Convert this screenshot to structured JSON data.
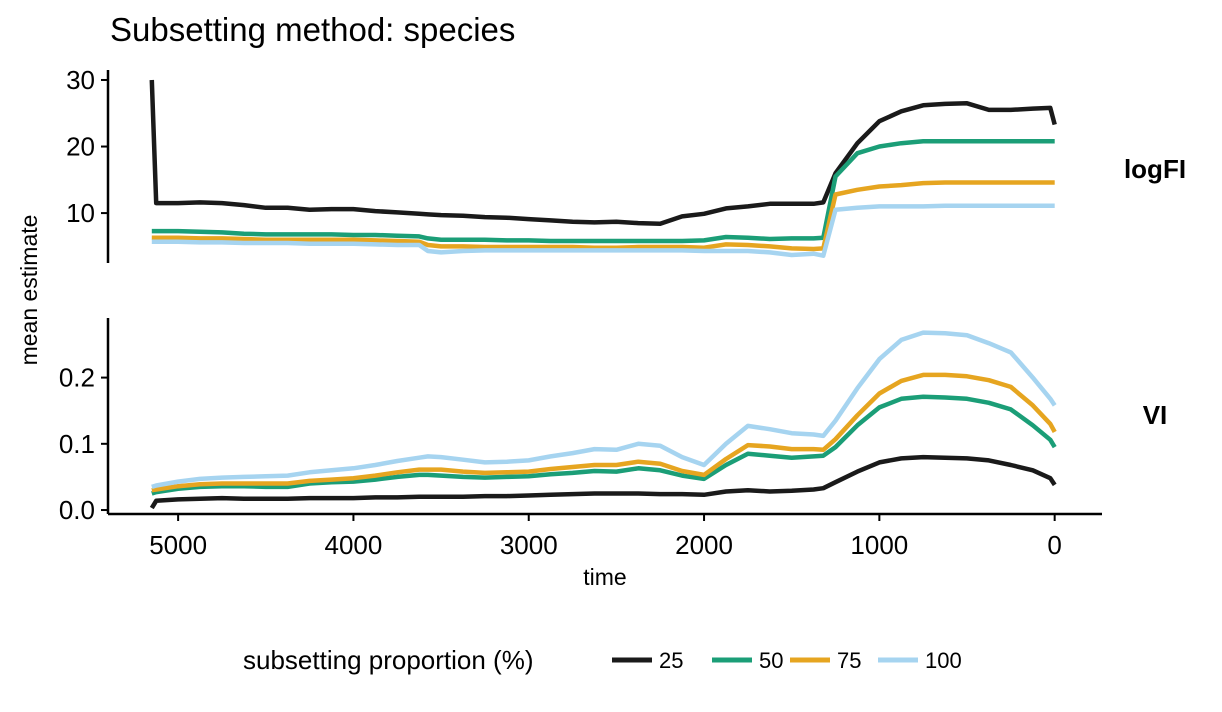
{
  "chart_data": {
    "type": "line",
    "title": "Subsetting method: species",
    "xlabel": "time",
    "ylabel": "mean estimate",
    "x_reversed": true,
    "xlim": [
      5400,
      -270
    ],
    "x_ticks": [
      5000,
      4000,
      3000,
      2000,
      1000,
      0
    ],
    "x": [
      5150,
      5125,
      5000,
      4875,
      4750,
      4625,
      4500,
      4375,
      4250,
      4125,
      4000,
      3875,
      3750,
      3625,
      3575,
      3500,
      3375,
      3250,
      3125,
      3000,
      2875,
      2750,
      2625,
      2500,
      2375,
      2250,
      2125,
      2000,
      1875,
      1750,
      1625,
      1500,
      1375,
      1320,
      1250,
      1125,
      1000,
      875,
      750,
      625,
      500,
      375,
      250,
      125,
      25,
      0
    ],
    "legend": {
      "title": "subsetting proportion (%)",
      "position": "bottom"
    },
    "series_colors": {
      "25": "#1a1a1a",
      "50": "#1b9e77",
      "75": "#e6a520",
      "100": "#a6d4f0"
    },
    "panels": [
      {
        "strip_label": "logFI",
        "ylim": [
          2.5,
          31.5
        ],
        "y_ticks": [
          "10",
          "20",
          "30"
        ],
        "y_tick_values": [
          10,
          20,
          30
        ],
        "series": [
          {
            "name": "25",
            "values": [
              30,
              11.5,
              11.5,
              11.6,
              11.5,
              11.2,
              10.8,
              10.8,
              10.5,
              10.6,
              10.6,
              10.3,
              10.1,
              9.9,
              9.8,
              9.7,
              9.6,
              9.4,
              9.3,
              9.1,
              8.9,
              8.7,
              8.6,
              8.7,
              8.5,
              8.4,
              9.5,
              9.9,
              10.7,
              11.0,
              11.4,
              11.4,
              11.4,
              11.6,
              16.0,
              20.5,
              23.8,
              25.3,
              26.2,
              26.4,
              26.5,
              25.5,
              25.5,
              25.7,
              25.8,
              23.3
            ]
          },
          {
            "name": "50",
            "values": [
              7.3,
              7.3,
              7.3,
              7.2,
              7.1,
              6.9,
              6.8,
              6.8,
              6.8,
              6.8,
              6.7,
              6.7,
              6.6,
              6.5,
              6.2,
              6.0,
              6.0,
              6.0,
              5.9,
              5.9,
              5.8,
              5.8,
              5.8,
              5.8,
              5.8,
              5.8,
              5.8,
              5.9,
              6.4,
              6.3,
              6.1,
              6.2,
              6.2,
              6.3,
              15.5,
              19.0,
              20.0,
              20.5,
              20.8,
              20.8,
              20.8,
              20.8,
              20.8,
              20.8,
              20.8,
              20.8
            ]
          },
          {
            "name": "75",
            "values": [
              6.3,
              6.3,
              6.3,
              6.2,
              6.2,
              6.1,
              6.0,
              6.0,
              6.0,
              6.0,
              6.0,
              5.9,
              5.8,
              5.7,
              5.2,
              5.0,
              5.0,
              4.9,
              4.9,
              4.9,
              4.9,
              4.9,
              4.8,
              4.8,
              4.9,
              4.9,
              4.9,
              4.8,
              5.3,
              5.2,
              5.0,
              4.7,
              4.6,
              4.7,
              12.8,
              13.5,
              14.0,
              14.2,
              14.5,
              14.6,
              14.6,
              14.6,
              14.6,
              14.6,
              14.6,
              14.6
            ]
          },
          {
            "name": "100",
            "values": [
              5.7,
              5.7,
              5.7,
              5.6,
              5.6,
              5.5,
              5.5,
              5.5,
              5.4,
              5.4,
              5.4,
              5.3,
              5.2,
              5.2,
              4.3,
              4.1,
              4.3,
              4.4,
              4.4,
              4.4,
              4.4,
              4.4,
              4.4,
              4.4,
              4.4,
              4.4,
              4.4,
              4.3,
              4.3,
              4.3,
              4.1,
              3.7,
              3.9,
              3.6,
              10.5,
              10.8,
              11.0,
              11.0,
              11.0,
              11.1,
              11.1,
              11.1,
              11.1,
              11.1,
              11.1,
              11.1
            ]
          }
        ]
      },
      {
        "strip_label": "VI",
        "ylim": [
          -0.006,
          0.29
        ],
        "y_ticks": [
          "0.0",
          "0.1",
          "0.2"
        ],
        "y_tick_values": [
          0.0,
          0.1,
          0.2
        ],
        "series": [
          {
            "name": "25",
            "values": [
              0.003,
              0.014,
              0.016,
              0.017,
              0.018,
              0.017,
              0.017,
              0.017,
              0.018,
              0.018,
              0.018,
              0.019,
              0.019,
              0.02,
              0.02,
              0.02,
              0.02,
              0.021,
              0.021,
              0.022,
              0.023,
              0.024,
              0.025,
              0.025,
              0.025,
              0.024,
              0.024,
              0.023,
              0.028,
              0.03,
              0.028,
              0.029,
              0.031,
              0.033,
              0.042,
              0.058,
              0.072,
              0.078,
              0.08,
              0.079,
              0.078,
              0.075,
              0.068,
              0.06,
              0.048,
              0.038
            ]
          },
          {
            "name": "50",
            "values": [
              0.025,
              0.027,
              0.032,
              0.035,
              0.036,
              0.036,
              0.035,
              0.035,
              0.04,
              0.042,
              0.043,
              0.046,
              0.05,
              0.053,
              0.053,
              0.052,
              0.05,
              0.049,
              0.05,
              0.051,
              0.054,
              0.056,
              0.059,
              0.058,
              0.063,
              0.06,
              0.052,
              0.047,
              0.068,
              0.085,
              0.082,
              0.079,
              0.081,
              0.082,
              0.095,
              0.128,
              0.155,
              0.168,
              0.171,
              0.17,
              0.168,
              0.162,
              0.152,
              0.128,
              0.106,
              0.095
            ]
          },
          {
            "name": "75",
            "values": [
              0.03,
              0.031,
              0.036,
              0.039,
              0.04,
              0.04,
              0.04,
              0.04,
              0.044,
              0.046,
              0.048,
              0.052,
              0.057,
              0.061,
              0.061,
              0.061,
              0.058,
              0.056,
              0.057,
              0.058,
              0.062,
              0.065,
              0.068,
              0.068,
              0.073,
              0.07,
              0.059,
              0.053,
              0.077,
              0.098,
              0.096,
              0.092,
              0.092,
              0.091,
              0.107,
              0.143,
              0.176,
              0.195,
              0.204,
              0.204,
              0.202,
              0.196,
              0.186,
              0.158,
              0.13,
              0.118
            ]
          },
          {
            "name": "100",
            "values": [
              0.035,
              0.037,
              0.043,
              0.047,
              0.049,
              0.05,
              0.051,
              0.052,
              0.057,
              0.06,
              0.063,
              0.068,
              0.074,
              0.079,
              0.081,
              0.08,
              0.076,
              0.072,
              0.073,
              0.075,
              0.081,
              0.086,
              0.092,
              0.091,
              0.1,
              0.097,
              0.08,
              0.068,
              0.1,
              0.127,
              0.122,
              0.116,
              0.114,
              0.112,
              0.135,
              0.184,
              0.228,
              0.257,
              0.268,
              0.267,
              0.264,
              0.252,
              0.238,
              0.2,
              0.168,
              0.158
            ]
          }
        ]
      }
    ]
  }
}
